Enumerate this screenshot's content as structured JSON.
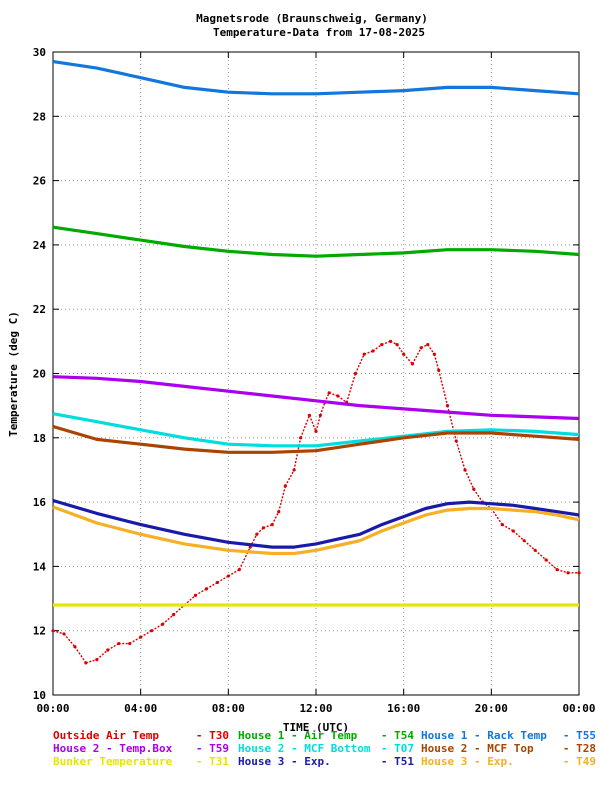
{
  "chart_data": {
    "type": "line",
    "title": "Magnetsrode (Braunschweig, Germany)",
    "subtitle": "Temperature-Data from 17-08-2025",
    "xlabel": "TIME (UTC)",
    "ylabel": "Temperature (deg C)",
    "xlim": [
      0,
      24
    ],
    "ylim": [
      10,
      30
    ],
    "xticks": [
      "00:00",
      "04:00",
      "08:00",
      "12:00",
      "16:00",
      "20:00",
      "00:00"
    ],
    "yticks": [
      "10",
      "12",
      "14",
      "16",
      "18",
      "20",
      "22",
      "24",
      "26",
      "28",
      "30"
    ],
    "grid": true,
    "series": [
      {
        "name": "Outside Air Temp",
        "sensor": "T30",
        "color": "#dd0000",
        "style": "dots",
        "x": [
          0,
          0.5,
          1,
          1.5,
          2,
          2.5,
          3,
          3.5,
          4,
          4.5,
          5,
          5.5,
          6,
          6.5,
          7,
          7.5,
          8,
          8.5,
          9,
          9.3,
          9.6,
          10,
          10.3,
          10.6,
          11,
          11.3,
          11.7,
          12,
          12.2,
          12.4,
          12.6,
          13,
          13.4,
          13.8,
          14.2,
          14.6,
          15,
          15.4,
          15.7,
          16,
          16.4,
          16.8,
          17.1,
          17.4,
          17.6,
          18,
          18.4,
          18.8,
          19.2,
          19.6,
          20,
          20.5,
          21,
          21.5,
          22,
          22.5,
          23,
          23.5,
          24
        ],
        "y": [
          12.0,
          11.9,
          11.5,
          11.0,
          11.1,
          11.4,
          11.6,
          11.6,
          11.8,
          12.0,
          12.2,
          12.5,
          12.8,
          13.1,
          13.3,
          13.5,
          13.7,
          13.9,
          14.6,
          15.0,
          15.2,
          15.3,
          15.7,
          16.5,
          17.0,
          18.0,
          18.7,
          18.2,
          18.7,
          19.1,
          19.4,
          19.3,
          19.1,
          20.0,
          20.6,
          20.7,
          20.9,
          21.0,
          20.9,
          20.6,
          20.3,
          20.8,
          20.9,
          20.6,
          20.1,
          19.0,
          17.9,
          17.0,
          16.4,
          16.0,
          15.8,
          15.3,
          15.1,
          14.8,
          14.5,
          14.2,
          13.9,
          13.8,
          13.8
        ]
      },
      {
        "name": "House 2 - Temp.Box",
        "sensor": "T59",
        "color": "#aa00ee",
        "style": "line",
        "x": [
          0,
          2,
          4,
          6,
          8,
          10,
          12,
          14,
          16,
          18,
          20,
          22,
          24
        ],
        "y": [
          19.9,
          19.85,
          19.75,
          19.6,
          19.45,
          19.3,
          19.15,
          19.0,
          18.9,
          18.8,
          18.7,
          18.65,
          18.6
        ]
      },
      {
        "name": "Bunker Temperature",
        "sensor": "T31",
        "color": "#e6e600",
        "style": "line",
        "x": [
          0,
          24
        ],
        "y": [
          12.8,
          12.8
        ]
      },
      {
        "name": "House 1 - Air  Temp",
        "sensor": "T54",
        "color": "#00aa00",
        "style": "line",
        "x": [
          0,
          2,
          4,
          6,
          8,
          10,
          12,
          14,
          16,
          18,
          20,
          22,
          24
        ],
        "y": [
          24.55,
          24.35,
          24.15,
          23.95,
          23.8,
          23.7,
          23.65,
          23.7,
          23.75,
          23.85,
          23.85,
          23.8,
          23.7
        ]
      },
      {
        "name": "House 2 - MCF Bottom",
        "sensor": "T07",
        "color": "#00dddd",
        "style": "line",
        "x": [
          0,
          2,
          4,
          6,
          8,
          10,
          12,
          14,
          16,
          18,
          20,
          22,
          24
        ],
        "y": [
          18.75,
          18.5,
          18.25,
          18.0,
          17.8,
          17.75,
          17.75,
          17.9,
          18.05,
          18.2,
          18.25,
          18.2,
          18.1
        ]
      },
      {
        "name": "House 3 - Exp.",
        "sensor": "T51",
        "color": "#1a1aaa",
        "style": "line",
        "x": [
          0,
          2,
          4,
          6,
          8,
          10,
          11,
          12,
          13,
          14,
          15,
          16,
          17,
          18,
          19,
          20,
          21,
          22,
          23,
          24
        ],
        "y": [
          16.05,
          15.65,
          15.3,
          15.0,
          14.75,
          14.6,
          14.6,
          14.7,
          14.85,
          15.0,
          15.3,
          15.55,
          15.8,
          15.95,
          16.0,
          15.95,
          15.9,
          15.8,
          15.7,
          15.6
        ]
      },
      {
        "name": "House 1 - Rack Temp",
        "sensor": "T55",
        "color": "#1177dd",
        "style": "line",
        "x": [
          0,
          2,
          4,
          6,
          8,
          10,
          12,
          14,
          16,
          18,
          20,
          22,
          24
        ],
        "y": [
          29.7,
          29.5,
          29.2,
          28.9,
          28.75,
          28.7,
          28.7,
          28.75,
          28.8,
          28.9,
          28.9,
          28.8,
          28.7
        ]
      },
      {
        "name": "House 2 - MCF Top",
        "sensor": "T28",
        "color": "#aa4400",
        "style": "line",
        "x": [
          0,
          2,
          4,
          6,
          8,
          10,
          12,
          14,
          16,
          18,
          20,
          22,
          24
        ],
        "y": [
          18.35,
          17.95,
          17.8,
          17.65,
          17.55,
          17.55,
          17.6,
          17.8,
          18.0,
          18.15,
          18.15,
          18.05,
          17.95
        ]
      },
      {
        "name": "House 3 - Exp.",
        "sensor": "T49",
        "color": "#f5b025",
        "style": "line",
        "x": [
          0,
          2,
          4,
          6,
          8,
          10,
          11,
          12,
          13,
          14,
          15,
          16,
          17,
          18,
          19,
          20,
          21,
          22,
          23,
          24
        ],
        "y": [
          15.85,
          15.35,
          15.0,
          14.7,
          14.5,
          14.4,
          14.4,
          14.5,
          14.65,
          14.8,
          15.1,
          15.35,
          15.6,
          15.75,
          15.8,
          15.8,
          15.75,
          15.7,
          15.6,
          15.45
        ]
      }
    ]
  }
}
